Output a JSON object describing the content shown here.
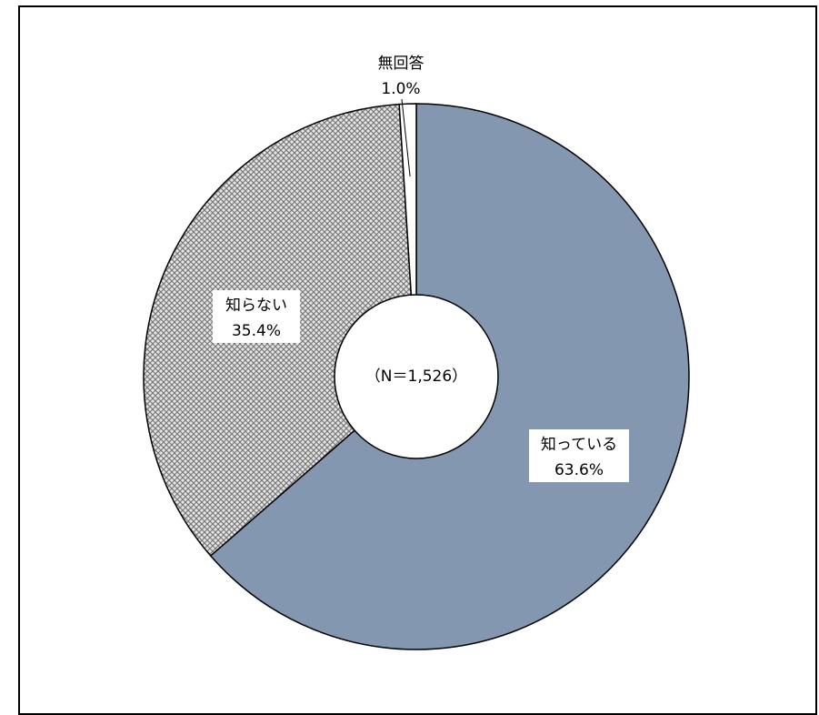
{
  "chart_data": {
    "type": "pie",
    "donut": true,
    "center_label": "（N＝1,526）",
    "slices": [
      {
        "label": "知っている",
        "value": 63.6,
        "value_label": "63.6%",
        "color": "#8497b0",
        "pattern": "solid"
      },
      {
        "label": "知らない",
        "value": 35.4,
        "value_label": "35.4%",
        "color": "#c8c8c8",
        "pattern": "crosshatch"
      },
      {
        "label": "無回答",
        "value": 1.0,
        "value_label": "1.0%",
        "color": "#ffffff",
        "pattern": "solid"
      }
    ],
    "start_angle": "12 o'clock",
    "direction": "clockwise",
    "legend": "none"
  }
}
